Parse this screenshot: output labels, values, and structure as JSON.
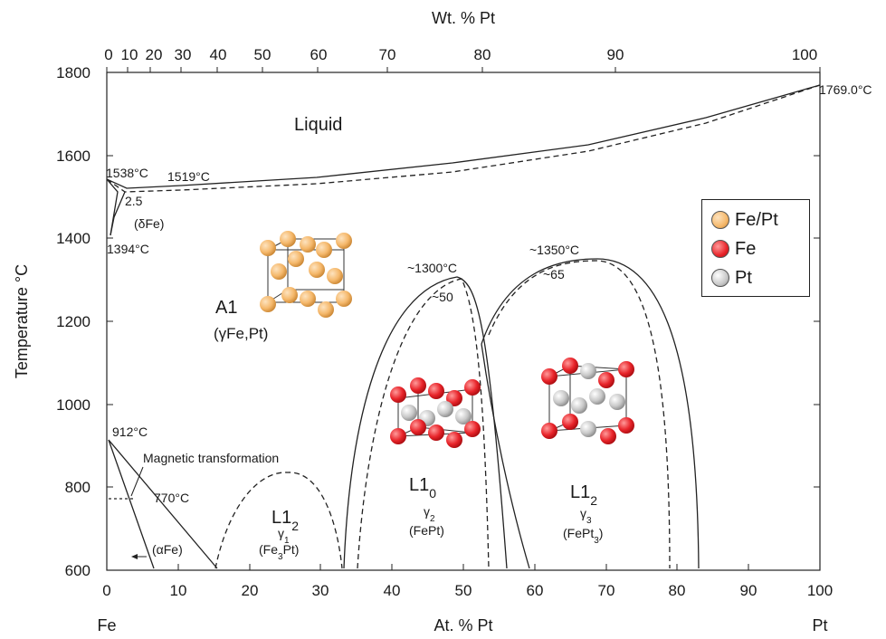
{
  "axes": {
    "top_title": "Wt. % Pt",
    "bottom_title": "At. % Pt",
    "y_title": "Temperature °C",
    "left_element": "Fe",
    "right_element": "Pt",
    "x_ticks": [
      "0",
      "10",
      "20",
      "30",
      "40",
      "50",
      "60",
      "70",
      "80",
      "90",
      "100"
    ],
    "top_ticks": [
      "0",
      "10",
      "20",
      "30",
      "40",
      "50",
      "60",
      "70",
      "80",
      "90",
      "100"
    ],
    "y_ticks": [
      "600",
      "800",
      "1000",
      "1200",
      "1400",
      "1600",
      "1800"
    ]
  },
  "annotations": {
    "liquid": "Liquid",
    "t1538": "1538°C",
    "t1519": "1519°C",
    "c25": "2.5",
    "delta_fe": "(δFe)",
    "t1394": "1394°C",
    "t1769": "1769.0°C",
    "t1300": "~1300°C",
    "c50": "~50",
    "t1350": "~1350°C",
    "c65": "~65",
    "t912": "912°C",
    "magnetic": "Magnetic transformation",
    "t770": "770°C",
    "alpha_fe": "(αFe)"
  },
  "phases": {
    "a1_name": "A1",
    "a1_sub": "(γFe,Pt)",
    "l12a_name": "L1",
    "l12a_idx": "2",
    "l12a_gamma": "γ",
    "l12a_gidx": "1",
    "l12a_f1": "(Fe",
    "l12a_f2": "3",
    "l12a_f3": "Pt)",
    "l10_name": "L1",
    "l10_idx": "0",
    "l10_gamma": "γ",
    "l10_gidx": "2",
    "l10_formula": "(FePt)",
    "l12b_name": "L1",
    "l12b_idx": "2",
    "l12b_gamma": "γ",
    "l12b_gidx": "3",
    "l12b_f1": "(FePt",
    "l12b_f2": "3",
    "l12b_f3": ")"
  },
  "legend": [
    {
      "label": "Fe/Pt",
      "color": "#f5b86b"
    },
    {
      "label": "Fe",
      "color": "#e8242a"
    },
    {
      "label": "Pt",
      "color": "#c8c8c8"
    }
  ]
}
